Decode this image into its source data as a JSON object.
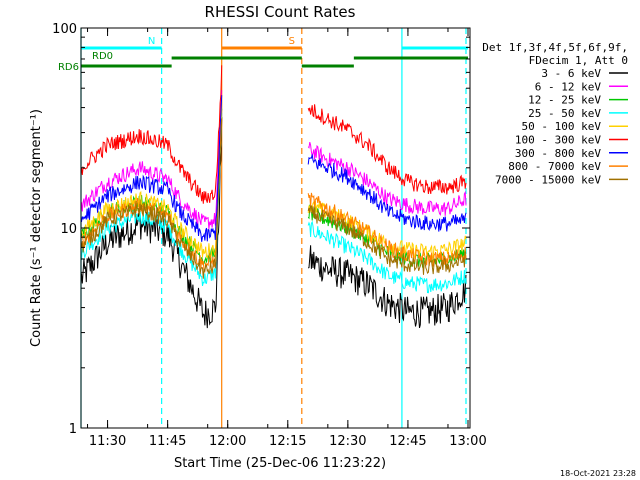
{
  "chart_data": {
    "type": "line",
    "title": "RHESSI Count Rates",
    "xlabel": "Start Time (25-Dec-06 11:23:22)",
    "ylabel": "Count Rate (s⁻¹ detector segment⁻¹)",
    "yscale": "log",
    "ylim": [
      1,
      100
    ],
    "xlim": [
      "11:23:22",
      "13:00:30"
    ],
    "x_tick_labels": [
      "11:30",
      "11:45",
      "12:00",
      "12:15",
      "12:30",
      "12:45",
      "13:00"
    ],
    "y_tick_labels": [
      "1",
      "10",
      "100"
    ],
    "grid": false,
    "legend_position": "right",
    "legend_header": [
      "Det 1f,3f,4f,5f,6f,9f,",
      "FDecim 1, Att 0"
    ],
    "series": [
      {
        "name": "3 - 6 keV",
        "color": "#000000",
        "x": [
          "11:23:30",
          "11:30",
          "11:38",
          "11:45",
          "11:48",
          "11:54",
          "11:57",
          "11:58:30",
          "12:20",
          "12:25",
          "12:30",
          "12:35",
          "12:40",
          "12:45",
          "12:50",
          "12:55",
          "12:59:30"
        ],
        "values": [
          5.6,
          8.5,
          10.5,
          9.3,
          6.8,
          3.7,
          4.0,
          30,
          7.0,
          6.2,
          5.8,
          5.2,
          4.2,
          3.8,
          3.8,
          4.0,
          5.0
        ]
      },
      {
        "name": "6 - 12 keV",
        "color": "#ff00ff",
        "x": [
          "11:23:30",
          "11:30",
          "11:38",
          "11:45",
          "11:48",
          "11:54",
          "11:57",
          "11:58:30",
          "12:20",
          "12:25",
          "12:30",
          "12:35",
          "12:40",
          "12:45",
          "12:50",
          "12:55",
          "12:59:30"
        ],
        "values": [
          13,
          17,
          20,
          17.5,
          14,
          10.5,
          11,
          50,
          25,
          22,
          20,
          17,
          14,
          13,
          12.5,
          12.5,
          14
        ]
      },
      {
        "name": "12 - 25 keV",
        "color": "#00c800",
        "x": [
          "11:23:30",
          "11:30",
          "11:38",
          "11:45",
          "11:48",
          "11:54",
          "11:57",
          "11:58:30",
          "12:20",
          "12:25",
          "12:30",
          "12:35",
          "12:40",
          "12:45",
          "12:50",
          "12:55",
          "12:59:30"
        ],
        "values": [
          9,
          12,
          13.5,
          12,
          9.5,
          7,
          7.5,
          40,
          12,
          11,
          10,
          8.8,
          7.5,
          7,
          6.8,
          7,
          7.5
        ]
      },
      {
        "name": "25 - 50 keV",
        "color": "#00ffff",
        "x": [
          "11:23:30",
          "11:30",
          "11:38",
          "11:45",
          "11:48",
          "11:54",
          "11:57",
          "11:58:30",
          "12:20",
          "12:25",
          "12:30",
          "12:35",
          "12:40",
          "12:45",
          "12:50",
          "12:55",
          "12:59:30"
        ],
        "values": [
          7.5,
          10,
          11.5,
          10.2,
          8,
          5.5,
          6,
          35,
          10,
          9,
          8,
          7,
          5.8,
          5.3,
          5.2,
          5.3,
          5.8
        ]
      },
      {
        "name": "50 - 100 keV",
        "color": "#ffd000",
        "x": [
          "11:23:30",
          "11:30",
          "11:38",
          "11:45",
          "11:48",
          "11:54",
          "11:57",
          "11:58:30",
          "12:20",
          "12:25",
          "12:30",
          "12:35",
          "12:40",
          "12:45",
          "12:50",
          "12:55",
          "12:59:30"
        ],
        "values": [
          9.5,
          12.5,
          14,
          12.5,
          10,
          7.5,
          8,
          40,
          13,
          12,
          11,
          9.5,
          8.3,
          7.8,
          7.6,
          7.8,
          8.4
        ]
      },
      {
        "name": "100 - 300 keV",
        "color": "#ff0000",
        "x": [
          "11:23:30",
          "11:30",
          "11:38",
          "11:45",
          "11:48",
          "11:54",
          "11:57",
          "11:58:30",
          "12:20",
          "12:25",
          "12:30",
          "12:35",
          "12:40",
          "12:45",
          "12:50",
          "12:55",
          "12:59:30"
        ],
        "values": [
          20,
          26,
          29,
          26,
          20,
          14,
          15,
          60,
          40,
          35,
          31,
          26,
          20,
          17,
          16,
          16,
          17
        ]
      },
      {
        "name": "300 - 800 keV",
        "color": "#0000ff",
        "x": [
          "11:23:30",
          "11:30",
          "11:38",
          "11:45",
          "11:48",
          "11:54",
          "11:57",
          "11:58:30",
          "12:20",
          "12:25",
          "12:30",
          "12:35",
          "12:40",
          "12:45",
          "12:50",
          "12:55",
          "12:59:30"
        ],
        "values": [
          11,
          14.5,
          17,
          15.5,
          12,
          9,
          9.5,
          45,
          22,
          20,
          18,
          15,
          12,
          11,
          10.5,
          10.5,
          11
        ]
      },
      {
        "name": "800 - 7000 keV",
        "color": "#ff8000",
        "x": [
          "11:23:30",
          "11:30",
          "11:38",
          "11:45",
          "11:48",
          "11:54",
          "11:57",
          "11:58:30",
          "12:20",
          "12:25",
          "12:30",
          "12:35",
          "12:40",
          "12:45",
          "12:50",
          "12:55",
          "12:59:30"
        ],
        "values": [
          8.5,
          11.5,
          13,
          11.5,
          9,
          6.5,
          7,
          38,
          14,
          12.5,
          11,
          9.5,
          8,
          7.3,
          7,
          7,
          7.5
        ]
      },
      {
        "name": "7000 - 15000 keV",
        "color": "#a07000",
        "x": [
          "11:23:30",
          "11:30",
          "11:38",
          "11:45",
          "11:48",
          "11:54",
          "11:57",
          "11:58:30",
          "12:20",
          "12:25",
          "12:30",
          "12:35",
          "12:40",
          "12:45",
          "12:50",
          "12:55",
          "12:59:30"
        ],
        "values": [
          8,
          11,
          12.5,
          11,
          8.5,
          6,
          6.5,
          36,
          12,
          11,
          10,
          8.5,
          7,
          6.5,
          6.3,
          6.5,
          7
        ]
      }
    ],
    "flag_bars": [
      {
        "label": "N",
        "color": "#00ffff",
        "level": "top",
        "segments": [
          [
            "11:23:22",
            "11:43:30"
          ],
          [
            "12:43:30",
            "13:00:00"
          ]
        ]
      },
      {
        "label": "S",
        "color": "#ff8000",
        "level": "top",
        "segments": [
          [
            "11:58:30",
            "12:18:30"
          ]
        ]
      },
      {
        "label": "RD0",
        "color": "#008000",
        "level": "mid",
        "segments": [
          [
            "11:46:00",
            "12:18:30"
          ],
          [
            "12:31:30",
            "13:00:00"
          ]
        ]
      },
      {
        "label": "RD6",
        "color": "#008000",
        "level": "low",
        "segments": [
          [
            "11:23:22",
            "11:46:00"
          ],
          [
            "12:18:30",
            "12:31:30"
          ]
        ]
      }
    ],
    "vertical_markers": [
      {
        "x": "11:23:22",
        "color": "#00ffff",
        "style": "solid"
      },
      {
        "x": "11:43:30",
        "color": "#00ffff",
        "style": "dashed"
      },
      {
        "x": "11:58:30",
        "color": "#ff8000",
        "style": "solid"
      },
      {
        "x": "12:18:30",
        "color": "#ff8000",
        "style": "dashed"
      },
      {
        "x": "12:43:30",
        "color": "#00ffff",
        "style": "solid"
      },
      {
        "x": "12:59:30",
        "color": "#00ffff",
        "style": "dashed"
      }
    ],
    "data_gap": [
      "11:58:30",
      "12:20:00"
    ]
  },
  "footer": {
    "timestamp": "18-Oct-2021 23:28"
  }
}
